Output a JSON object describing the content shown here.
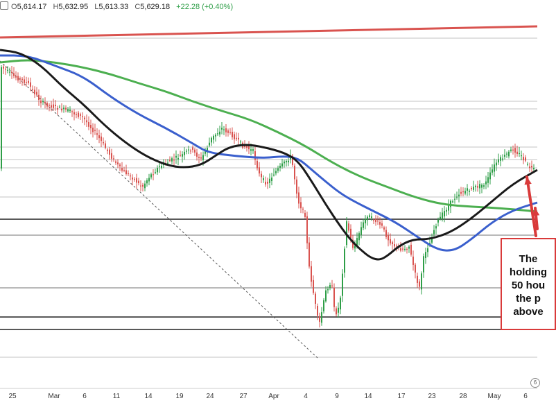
{
  "header": {
    "open_label": "O",
    "open_value": "5,614.17",
    "high_label": "H",
    "high_value": "5,632.95",
    "low_label": "L",
    "low_value": "5,613.33",
    "close_label": "C",
    "close_value": "5,629.18",
    "change_text": "+22.28 (+0.40%)"
  },
  "annotation": {
    "lines": [
      "The",
      "holding",
      "50 hou",
      "the p",
      "above"
    ]
  },
  "chart_data": {
    "type": "candlestick",
    "title": "",
    "x_tick_labels": [
      "25",
      "Mar",
      "6",
      "11",
      "14",
      "19",
      "24",
      "27",
      "Apr",
      "4",
      "9",
      "14",
      "17",
      "23",
      "28",
      "May",
      "6"
    ],
    "series": [
      {
        "name": "",
        "kind": "moving-average",
        "color": "#000000"
      },
      {
        "name": "",
        "kind": "moving-average",
        "color": "#3a5fcd"
      },
      {
        "name": "",
        "kind": "moving-average",
        "color": "#4caf50"
      },
      {
        "name": "",
        "kind": "trend-line",
        "color": "#d9534f"
      },
      {
        "name": "",
        "kind": "trend-line-dashed",
        "color": "#555555"
      }
    ],
    "last_bar": {
      "open": 5614.17,
      "high": 5632.95,
      "low": 5613.33,
      "close": 5629.18,
      "change": 22.28,
      "change_pct": 0.4
    },
    "up_color": "#2e9e47",
    "down_color": "#d9534f",
    "grid": false
  }
}
